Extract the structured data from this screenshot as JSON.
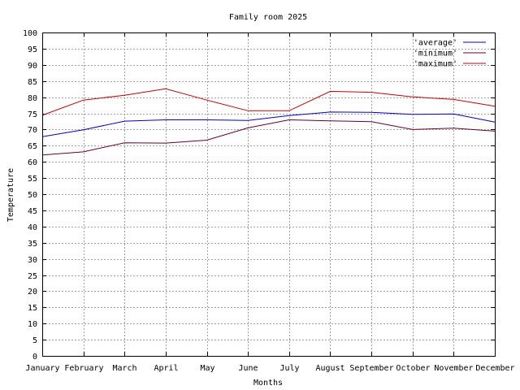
{
  "chart_data": {
    "type": "line",
    "title": "Family room 2025",
    "xlabel": "Months",
    "ylabel": "Temperature",
    "categories": [
      "January",
      "February",
      "March",
      "April",
      "May",
      "June",
      "July",
      "August",
      "September",
      "October",
      "November",
      "December"
    ],
    "ylim": [
      0,
      100
    ],
    "ytick_step": 5,
    "grid": true,
    "legend_position": "top-right",
    "series": [
      {
        "name": "'average'",
        "color": "#0000cc",
        "values": [
          67.8,
          69.9,
          72.6,
          73.0,
          73.0,
          72.8,
          74.3,
          75.4,
          75.3,
          74.7,
          74.8,
          72.3
        ]
      },
      {
        "name": "'minimum'",
        "color": "#660033",
        "values": [
          62.1,
          63.1,
          65.9,
          65.8,
          66.7,
          70.5,
          73.0,
          72.7,
          72.4,
          70.0,
          70.4,
          69.5
        ]
      },
      {
        "name": "'maximum'",
        "color": "#cc0000",
        "values": [
          74.4,
          79.1,
          80.6,
          82.6,
          79.1,
          75.8,
          75.8,
          81.8,
          81.5,
          80.1,
          79.3,
          77.2
        ]
      }
    ]
  }
}
